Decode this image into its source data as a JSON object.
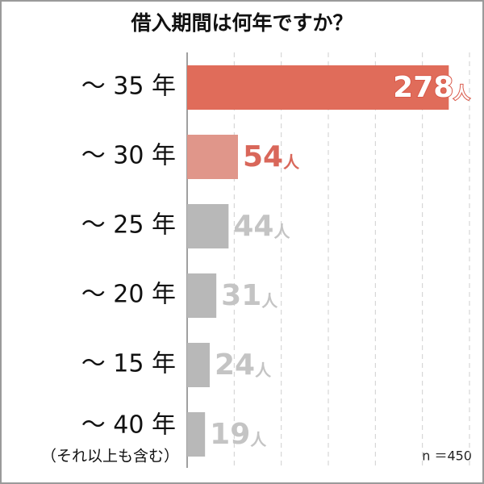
{
  "chart_data": {
    "type": "hbar",
    "title": "借入期間は何年ですか？",
    "categories": [
      "～ 35 年",
      "～ 30 年",
      "～ 25 年",
      "～ 20 年",
      "～ 15 年",
      "～ 40 年"
    ],
    "category_note": "（それ以上も含む）",
    "values": [
      278,
      54,
      44,
      31,
      24,
      19
    ],
    "value_unit": "人",
    "colors": [
      "#e06c5a",
      "#e0968a",
      "#b8b8b8",
      "#b8b8b8",
      "#b8b8b8",
      "#b8b8b8"
    ],
    "label_colors": [
      "#ffffff",
      "#d9675a",
      "#c4c4c4",
      "#c4c4c4",
      "#c4c4c4",
      "#c4c4c4"
    ],
    "xlim": [
      0,
      300
    ],
    "xticks": [
      50,
      100,
      150,
      200,
      250,
      300
    ],
    "grid": true,
    "note": "n ＝450"
  }
}
